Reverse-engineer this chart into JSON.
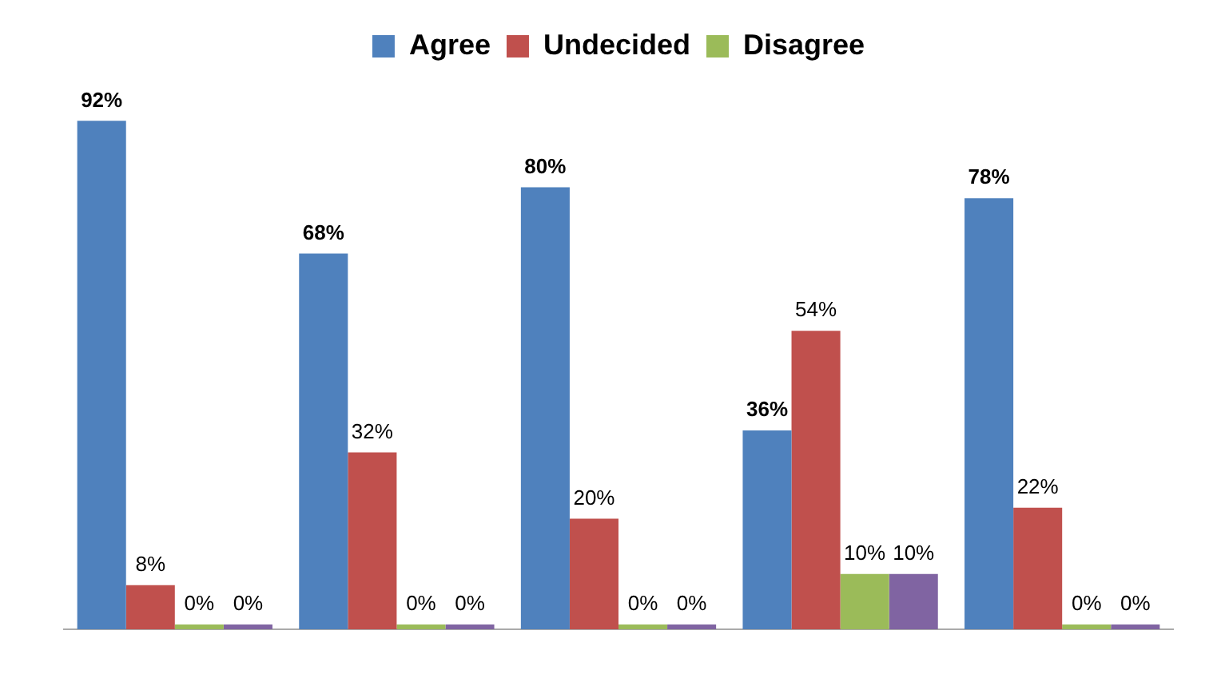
{
  "chart_data": {
    "type": "bar",
    "categories": [
      null,
      null,
      null,
      null,
      null
    ],
    "series": [
      {
        "name": "Agree",
        "color": "#4f81bd",
        "values": [
          92,
          68,
          80,
          36,
          78
        ],
        "value_labels": [
          "92%",
          "68%",
          "80%",
          "36%",
          "78%"
        ]
      },
      {
        "name": "Undecided",
        "color": "#c0504d",
        "values": [
          8,
          32,
          20,
          54,
          22
        ],
        "value_labels": [
          "8%",
          "32%",
          "20%",
          "54%",
          "22%"
        ]
      },
      {
        "name": "Disagree",
        "color": "#9bbb59",
        "values": [
          0,
          0,
          0,
          10,
          0
        ],
        "value_labels": [
          "0%",
          "0%",
          "0%",
          "10%",
          "0%"
        ]
      },
      {
        "color": "#8064a2",
        "values": [
          0,
          0,
          0,
          10,
          0
        ],
        "value_labels": [
          "0%",
          "0%",
          "0%",
          "10%",
          "0%"
        ]
      }
    ],
    "legend": "top",
    "grid": false
  }
}
